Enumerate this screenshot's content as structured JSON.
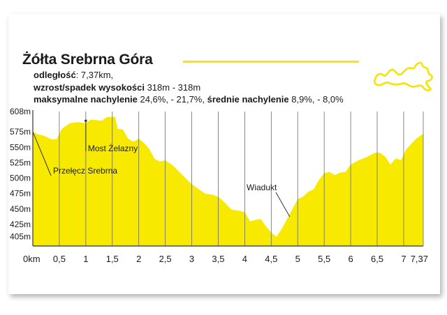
{
  "header": {
    "title": "Żółta Srebrna Góra",
    "accent_color": "#f7e600",
    "line1": {
      "label": "odległość",
      "value": ": 7,37km,"
    },
    "line2": {
      "label": "wzrost/spadek wysokości",
      "value": " 318m - 318m"
    },
    "line3": {
      "label1": "maksymalne nachylenie",
      "value1": " 24,6%, - 21,7%, ",
      "label2": "średnie nachylenie",
      "value2": " 8,9%, - 8,0%"
    },
    "map_icon": "route-outline-icon"
  },
  "chart_data": {
    "type": "area",
    "fill_color": "#f7ea00",
    "x_unit": "km",
    "y_unit": "m",
    "xlim": [
      0,
      7.37
    ],
    "ylim": [
      390,
      608
    ],
    "y_ticks": [
      {
        "value": 608,
        "label": "608m"
      },
      {
        "value": 575,
        "label": "575m"
      },
      {
        "value": 550,
        "label": "550m"
      },
      {
        "value": 525,
        "label": "525m"
      },
      {
        "value": 500,
        "label": "500m"
      },
      {
        "value": 475,
        "label": "475m"
      },
      {
        "value": 450,
        "label": "450m"
      },
      {
        "value": 425,
        "label": "425m"
      },
      {
        "value": 405,
        "label": "405m"
      }
    ],
    "x_ticks": [
      {
        "value": 0,
        "label": "0km"
      },
      {
        "value": 0.5,
        "label": "0,5"
      },
      {
        "value": 1,
        "label": "1"
      },
      {
        "value": 1.5,
        "label": "1,5"
      },
      {
        "value": 2,
        "label": "2"
      },
      {
        "value": 2.5,
        "label": "2,5"
      },
      {
        "value": 3,
        "label": "3"
      },
      {
        "value": 3.5,
        "label": "3,5"
      },
      {
        "value": 4,
        "label": "4"
      },
      {
        "value": 4.5,
        "label": "4,5"
      },
      {
        "value": 5,
        "label": "5"
      },
      {
        "value": 5.5,
        "label": "5,5"
      },
      {
        "value": 6,
        "label": "6"
      },
      {
        "value": 6.5,
        "label": "6,5"
      },
      {
        "value": 7,
        "label": "7"
      },
      {
        "value": 7.37,
        "label": "7,37"
      }
    ],
    "grid": "vertical",
    "series": [
      {
        "x": [
          0,
          0.1,
          0.2,
          0.35,
          0.45,
          0.55,
          0.7,
          0.85,
          1.0,
          1.1,
          1.2,
          1.3,
          1.4,
          1.5,
          1.55,
          1.6,
          1.7,
          1.8,
          1.9,
          2.0,
          2.1,
          2.2,
          2.3,
          2.4,
          2.5,
          2.65,
          2.8,
          2.95,
          3.1,
          3.25,
          3.4,
          3.5,
          3.65,
          3.75,
          3.85,
          4.0,
          4.1,
          4.2,
          4.3,
          4.4,
          4.5,
          4.6,
          4.7,
          4.85,
          5.0,
          5.1,
          5.2,
          5.3,
          5.4,
          5.5,
          5.6,
          5.7,
          5.8,
          5.9,
          6.0,
          6.15,
          6.3,
          6.45,
          6.55,
          6.65,
          6.75,
          6.85,
          6.95,
          7.05,
          7.15,
          7.25,
          7.37
        ],
        "y": [
          575,
          571,
          569,
          563,
          563,
          580,
          589,
          591,
          589,
          595,
          594,
          593,
          599,
          599,
          600,
          580,
          579,
          564,
          559,
          564,
          557,
          547,
          531,
          527,
          529,
          520,
          507,
          494,
          484,
          475,
          473,
          470,
          458,
          449,
          448,
          445,
          430,
          432,
          434,
          422,
          412,
          405,
          418,
          442,
          466,
          470,
          478,
          482,
          497,
          508,
          510,
          505,
          509,
          510,
          522,
          529,
          534,
          541,
          541,
          535,
          522,
          532,
          529,
          547,
          556,
          565,
          572
        ]
      }
    ],
    "annotations": [
      {
        "text": "Most Żelazny",
        "x": 1.0,
        "y": 593
      },
      {
        "text": "Przełęcz Srebrna",
        "x": 0.0,
        "y": 575
      },
      {
        "text": "Wiadukt",
        "x": 4.85,
        "y": 442
      }
    ]
  }
}
